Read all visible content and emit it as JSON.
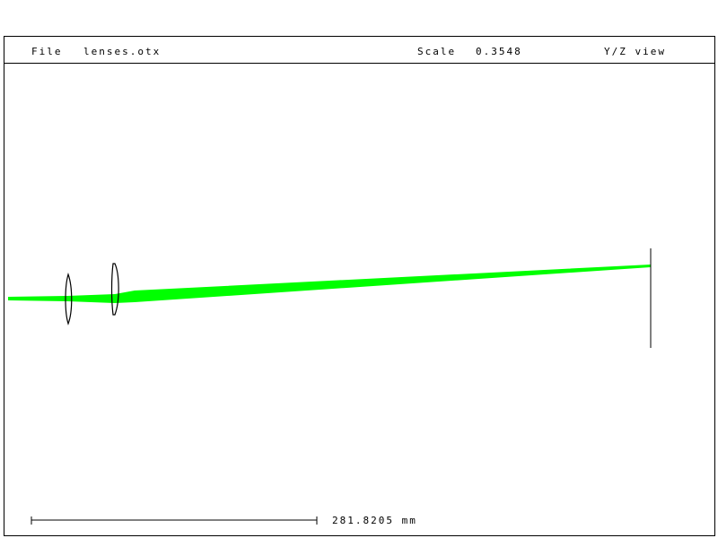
{
  "header": {
    "file_label": "File",
    "file_name": "lenses.otx",
    "scale_label": "Scale",
    "scale_value": "0.3548",
    "view": "Y/Z view"
  },
  "scale_bar": {
    "label": "281.8205 mm"
  },
  "colors": {
    "rays": "#00ff00",
    "lens": "#000000",
    "frame": "#000000"
  }
}
